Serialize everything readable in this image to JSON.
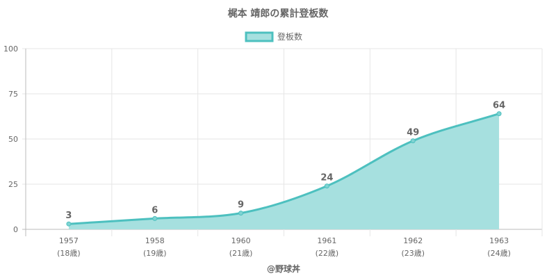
{
  "chart_data": {
    "type": "area",
    "title": "梶本 靖郎の累計登板数",
    "legend_position": "top-center",
    "series": [
      {
        "name": "登板数",
        "values": [
          3,
          6,
          9,
          24,
          49,
          64
        ],
        "color": "#4dc0bf",
        "fill": "#a6e0df"
      }
    ],
    "categories": [
      {
        "year": "1957",
        "age": "(18歳)"
      },
      {
        "year": "1958",
        "age": "(19歳)"
      },
      {
        "year": "1960",
        "age": "(21歳)"
      },
      {
        "year": "1961",
        "age": "(22歳)"
      },
      {
        "year": "1962",
        "age": "(23歳)"
      },
      {
        "year": "1963",
        "age": "(24歳)"
      }
    ],
    "ylim": [
      0,
      100
    ],
    "yticks": [
      "0",
      "25",
      "50",
      "75",
      "100"
    ],
    "grid": true,
    "data_labels": true
  },
  "credit": "@野球丼"
}
